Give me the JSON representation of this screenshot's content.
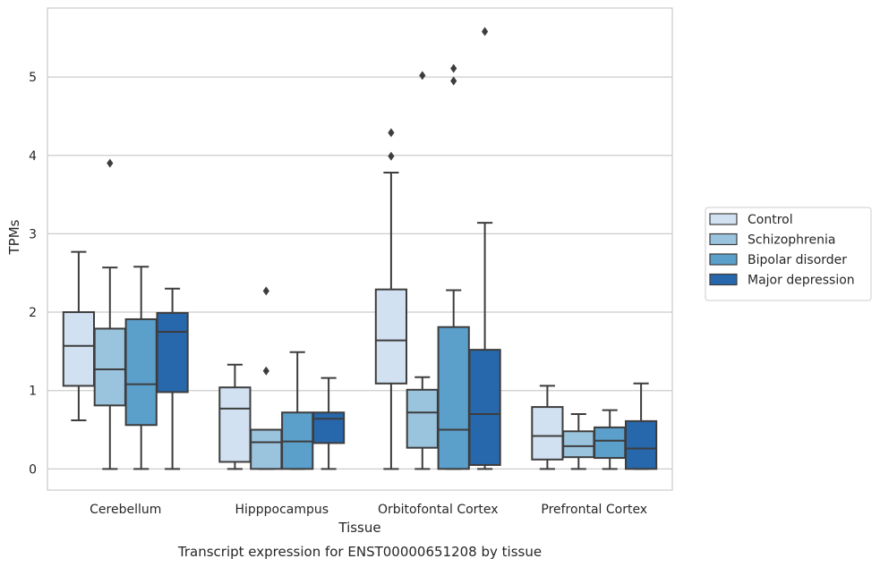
{
  "chart_data": {
    "type": "box",
    "xlabel": "Tissue",
    "ylabel": "TPMs",
    "caption": "Transcript expression for ENST00000651208 by tissue",
    "ylim": [
      -0.27,
      5.88
    ],
    "yticks": [
      0,
      1,
      2,
      3,
      4,
      5
    ],
    "grid": true,
    "legend_position": "right",
    "categories": [
      "Cerebellum",
      "Hipppocampus",
      "Orbitofontal Cortex",
      "Prefrontal Cortex"
    ],
    "series": [
      {
        "name": "Control",
        "color": "#d2e1f2",
        "boxes": [
          {
            "whislo": 0.62,
            "q1": 1.06,
            "med": 1.57,
            "q3": 2.0,
            "whishi": 2.77,
            "fliers": []
          },
          {
            "whislo": 0.0,
            "q1": 0.09,
            "med": 0.77,
            "q3": 1.04,
            "whishi": 1.33,
            "fliers": []
          },
          {
            "whislo": 0.0,
            "q1": 1.09,
            "med": 1.64,
            "q3": 2.29,
            "whishi": 3.78,
            "fliers": [
              4.29,
              3.99
            ]
          },
          {
            "whislo": 0.0,
            "q1": 0.12,
            "med": 0.42,
            "q3": 0.79,
            "whishi": 1.06,
            "fliers": []
          }
        ]
      },
      {
        "name": "Schizophrenia",
        "color": "#9ac4de",
        "boxes": [
          {
            "whislo": 0.0,
            "q1": 0.81,
            "med": 1.27,
            "q3": 1.79,
            "whishi": 2.57,
            "fliers": [
              3.9
            ]
          },
          {
            "whislo": 0.0,
            "q1": 0.0,
            "med": 0.34,
            "q3": 0.5,
            "whishi": 0.5,
            "fliers": [
              2.27,
              1.25
            ]
          },
          {
            "whislo": 0.0,
            "q1": 0.27,
            "med": 0.72,
            "q3": 1.01,
            "whishi": 1.17,
            "fliers": [
              5.02
            ]
          },
          {
            "whislo": 0.0,
            "q1": 0.15,
            "med": 0.29,
            "q3": 0.48,
            "whishi": 0.7,
            "fliers": []
          }
        ]
      },
      {
        "name": "Bipolar disorder",
        "color": "#5b9fcb",
        "boxes": [
          {
            "whislo": 0.0,
            "q1": 0.56,
            "med": 1.08,
            "q3": 1.91,
            "whishi": 2.58,
            "fliers": []
          },
          {
            "whislo": 0.0,
            "q1": 0.0,
            "med": 0.35,
            "q3": 0.72,
            "whishi": 1.49,
            "fliers": []
          },
          {
            "whislo": 0.0,
            "q1": 0.0,
            "med": 0.5,
            "q3": 1.81,
            "whishi": 2.28,
            "fliers": [
              5.11,
              4.95
            ]
          },
          {
            "whislo": 0.0,
            "q1": 0.14,
            "med": 0.36,
            "q3": 0.53,
            "whishi": 0.75,
            "fliers": []
          }
        ]
      },
      {
        "name": "Major depression",
        "color": "#2767ab",
        "boxes": [
          {
            "whislo": 0.0,
            "q1": 0.98,
            "med": 1.75,
            "q3": 1.99,
            "whishi": 2.3,
            "fliers": []
          },
          {
            "whislo": 0.0,
            "q1": 0.33,
            "med": 0.64,
            "q3": 0.72,
            "whishi": 1.16,
            "fliers": []
          },
          {
            "whislo": 0.0,
            "q1": 0.05,
            "med": 0.7,
            "q3": 1.52,
            "whishi": 3.14,
            "fliers": [
              5.58
            ]
          },
          {
            "whislo": 0.0,
            "q1": 0.0,
            "med": 0.26,
            "q3": 0.61,
            "whishi": 1.09,
            "fliers": []
          }
        ]
      }
    ]
  }
}
